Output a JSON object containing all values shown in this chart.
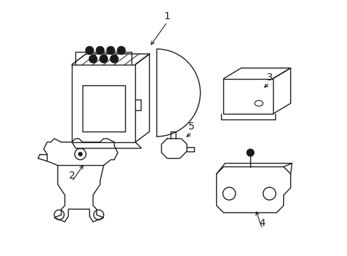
{
  "background_color": "#ffffff",
  "line_color": "#1a1a1a",
  "figsize": [
    4.89,
    3.6
  ],
  "dpi": 100,
  "lw": 1.0
}
